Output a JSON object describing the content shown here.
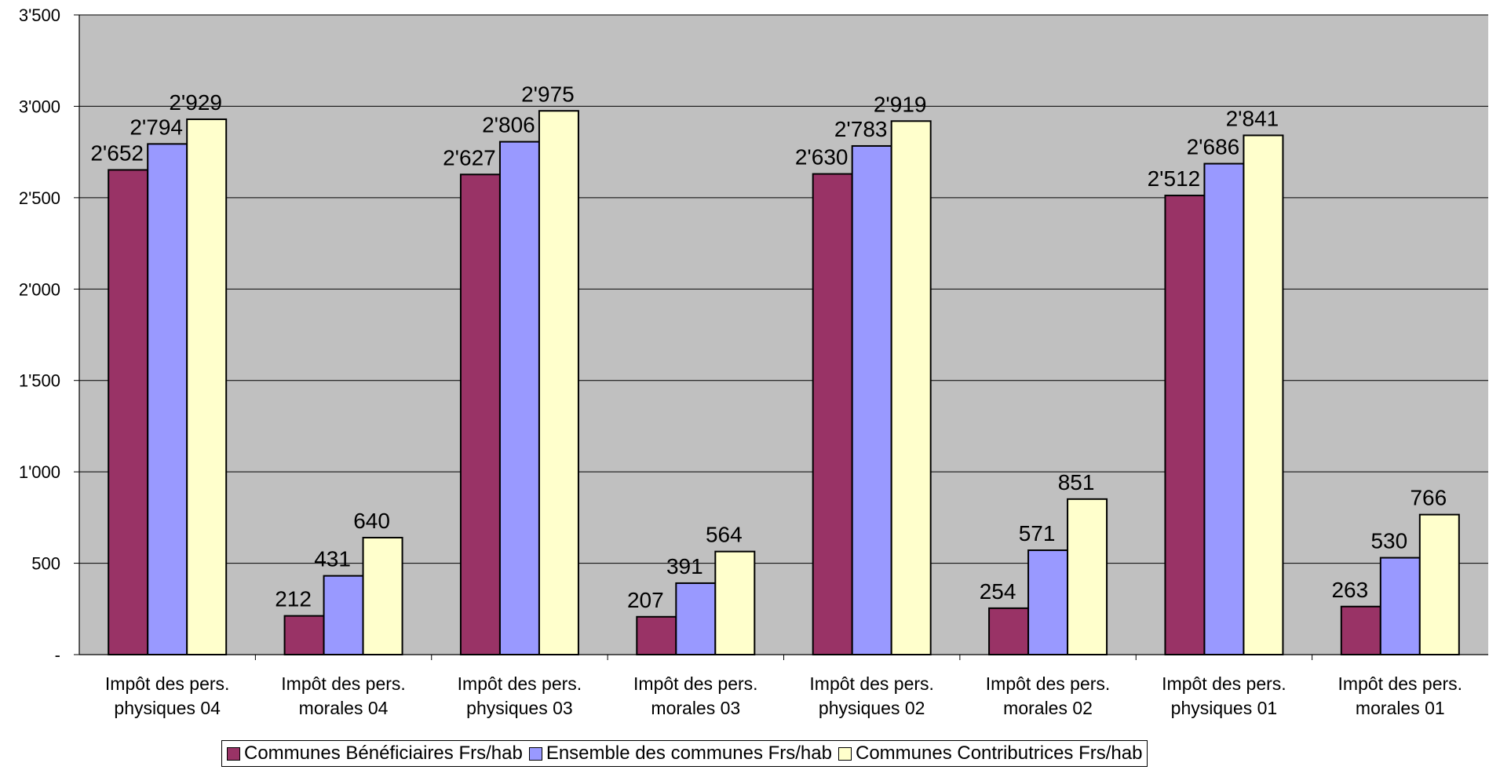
{
  "chart_data": {
    "type": "bar",
    "categories": [
      [
        "Impôt des pers.",
        "physiques 04"
      ],
      [
        "Impôt des pers.",
        "morales 04"
      ],
      [
        "Impôt des pers.",
        "physiques 03"
      ],
      [
        "Impôt des pers.",
        "morales 03"
      ],
      [
        "Impôt des pers.",
        "physiques 02"
      ],
      [
        "Impôt des pers.",
        "morales 02"
      ],
      [
        "Impôt des pers.",
        "physiques 01"
      ],
      [
        "Impôt des pers.",
        "morales 01"
      ]
    ],
    "series": [
      {
        "name": "Communes Bénéficiaires Frs/hab",
        "color": "#993366",
        "values": [
          2652,
          212,
          2627,
          207,
          2630,
          254,
          2512,
          263
        ],
        "labels": [
          "2'652",
          "212",
          "2'627",
          "207",
          "2'630",
          "254",
          "2'512",
          "263"
        ]
      },
      {
        "name": "Ensemble des communes Frs/hab",
        "color": "#9999FF",
        "values": [
          2794,
          431,
          2806,
          391,
          2783,
          571,
          2686,
          530
        ],
        "labels": [
          "2'794",
          "431",
          "2'806",
          "391",
          "2'783",
          "571",
          "2'686",
          "530"
        ]
      },
      {
        "name": "Communes Contributrices Frs/hab",
        "color": "#FFFFCC",
        "values": [
          2929,
          640,
          2975,
          564,
          2919,
          851,
          2841,
          766
        ],
        "labels": [
          "2'929",
          "640",
          "2'975",
          "564",
          "2'919",
          "851",
          "2'841",
          "766"
        ]
      }
    ],
    "ylim": [
      0,
      3500
    ],
    "yticks": [
      0,
      500,
      1000,
      1500,
      2000,
      2500,
      3000,
      3500
    ],
    "ytick_labels": [
      "-",
      "500",
      "1'000",
      "1'500",
      "2'000",
      "2'500",
      "3'000",
      "3'500"
    ],
    "grid": true,
    "plot_background": "#C0C0C0",
    "legend_position": "bottom"
  }
}
